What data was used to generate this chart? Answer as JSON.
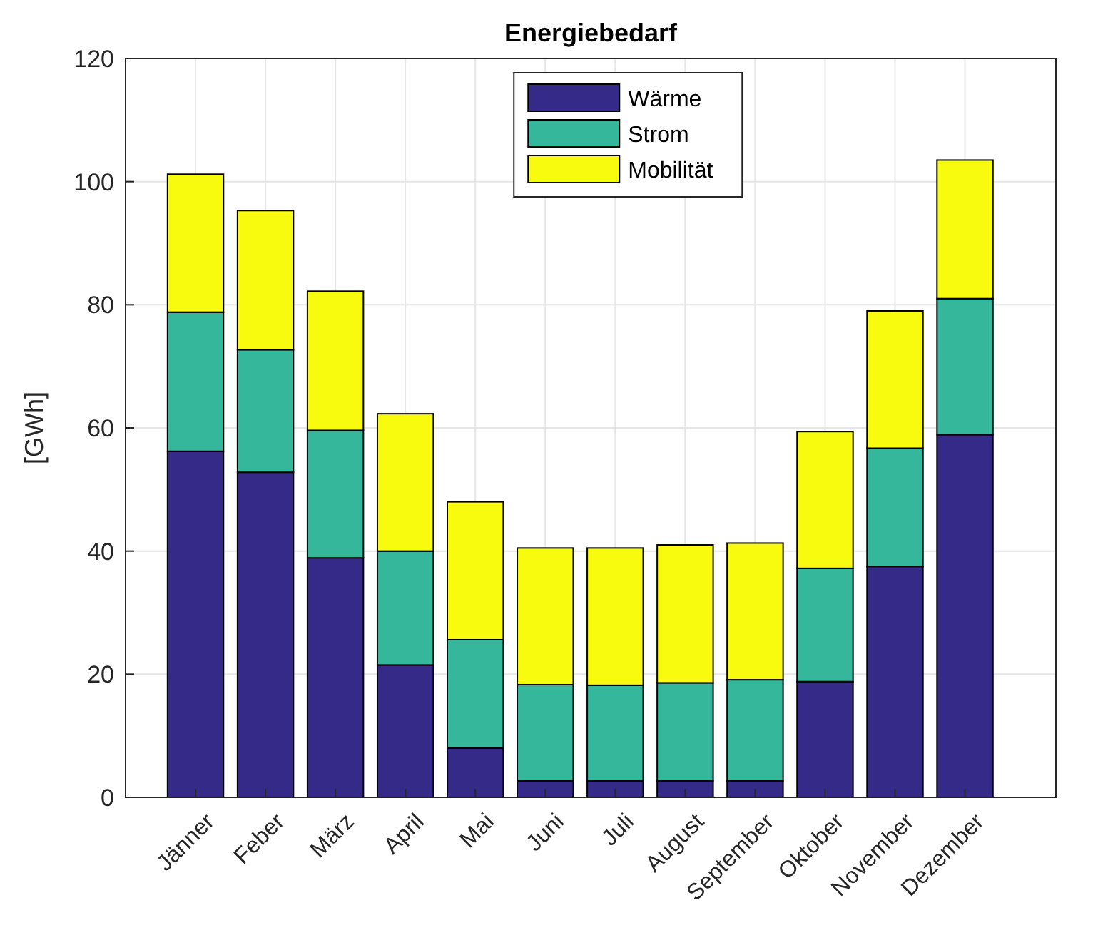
{
  "chart_data": {
    "type": "bar",
    "title": "Energiebedarf",
    "ylabel": "[GWh]",
    "stacked": true,
    "categories": [
      "Jänner",
      "Feber",
      "März",
      "April",
      "Mai",
      "Juni",
      "Juli",
      "August",
      "September",
      "Oktober",
      "November",
      "Dezember"
    ],
    "series": [
      {
        "name": "Wärme",
        "color": "#352a87",
        "values": [
          56.2,
          52.8,
          38.9,
          21.5,
          8,
          2.7,
          2.7,
          2.7,
          2.7,
          18.8,
          37.5,
          58.9
        ]
      },
      {
        "name": "Strom",
        "color": "#35b79b",
        "values": [
          22.6,
          19.9,
          20.7,
          18.5,
          17.6,
          15.6,
          15.5,
          15.9,
          16.4,
          18.4,
          19.2,
          22.1
        ]
      },
      {
        "name": "Mobilität",
        "color": "#f9fb0e",
        "values": [
          22.4,
          22.6,
          22.6,
          22.3,
          22.4,
          22.2,
          22.3,
          22.4,
          22.2,
          22.2,
          22.3,
          22.5
        ]
      }
    ],
    "ylim": [
      0,
      120
    ],
    "yticks": [
      0,
      20,
      40,
      60,
      80,
      100,
      120
    ],
    "grid": true,
    "legend": "top"
  }
}
